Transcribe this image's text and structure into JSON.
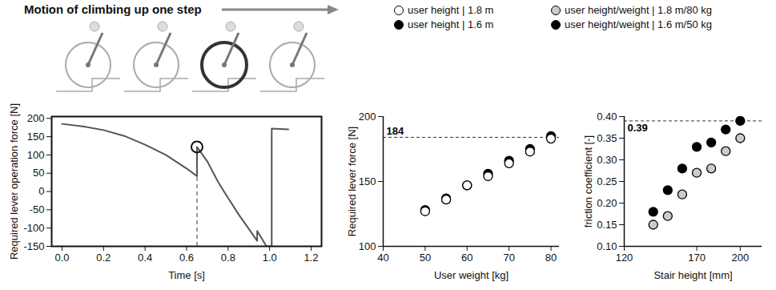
{
  "chart_data": [
    {
      "type": "line",
      "title": "Motion of climbing up one step",
      "x_label": "Time [s]",
      "y_label": "Required lever operation force [N]",
      "x": [
        0,
        0.1,
        0.2,
        0.3,
        0.4,
        0.5,
        0.6,
        0.65,
        0.65,
        0.7,
        0.75,
        0.78,
        0.85,
        0.94,
        0.94,
        0.985,
        1.01,
        1.01,
        1.09
      ],
      "values": [
        185,
        178,
        168,
        152,
        128,
        100,
        63,
        42,
        122,
        82,
        28,
        0,
        -62,
        -135,
        -108,
        -150,
        -150,
        172,
        170
      ],
      "color": "#555555",
      "highlight": {
        "x": 0.65,
        "y": 122
      },
      "xlim": [
        -0.05,
        1.25
      ],
      "ylim": [
        -150,
        205
      ],
      "xticks": [
        {
          "value": 0,
          "label": "0.0"
        },
        0.2,
        0.4,
        0.6,
        0.8,
        {
          "value": 1,
          "label": "1.0"
        },
        1.2
      ],
      "yticks": [
        -150,
        -100,
        -50,
        0,
        50,
        100,
        150,
        200
      ],
      "grid": false
    },
    {
      "type": "scatter",
      "x_label": "User weight [kg]",
      "y_label": "Required lever force [N]",
      "x": [
        50,
        55,
        60,
        65,
        70,
        75,
        80
      ],
      "series": [
        {
          "name": "user height | 1.6 m",
          "color": "#000000",
          "marker": "circle",
          "values": [
            128,
            137,
            147,
            156,
            166,
            175,
            185
          ]
        },
        {
          "name": "user height | 1.8 m",
          "color": "#ffffff",
          "marker": "circle",
          "values": [
            127,
            136,
            147,
            154,
            164,
            173,
            183
          ]
        }
      ],
      "annotations": [
        {
          "y": 184,
          "text": "184"
        }
      ],
      "xlim": [
        40,
        82
      ],
      "ylim": [
        100,
        200
      ],
      "xticks": [
        40,
        50,
        60,
        70,
        80
      ],
      "yticks": [
        100,
        150,
        200
      ],
      "legend": "top",
      "grid": false
    },
    {
      "type": "scatter",
      "x_label": "Stair height [mm]",
      "y_label": "friction coefficient [-]",
      "x": [
        140,
        150,
        160,
        170,
        180,
        190,
        200
      ],
      "series": [
        {
          "name": "user height/weight | 1.6 m/50 kg",
          "color": "#000000",
          "marker": "circle",
          "values": [
            0.18,
            0.23,
            0.28,
            0.33,
            0.34,
            0.37,
            0.39
          ]
        },
        {
          "name": "user height/weight | 1.8 m/80 kg",
          "color": "#cccccc",
          "marker": "circle",
          "values": [
            0.15,
            0.17,
            0.22,
            0.27,
            0.28,
            0.32,
            0.35
          ]
        }
      ],
      "annotations": [
        {
          "y": 0.39,
          "text": "0.39"
        }
      ],
      "xlim": [
        120,
        215
      ],
      "ylim": [
        0.1,
        0.4
      ],
      "xticks": [
        120,
        170,
        200
      ],
      "yticks": [
        {
          "value": 0.1,
          "label": "0.10"
        },
        0.15,
        {
          "value": 0.2,
          "label": "0.20"
        },
        0.25,
        {
          "value": 0.3,
          "label": "0.30"
        },
        0.35,
        {
          "value": 0.4,
          "label": "0.40"
        }
      ],
      "legend": "top",
      "grid": false
    }
  ]
}
